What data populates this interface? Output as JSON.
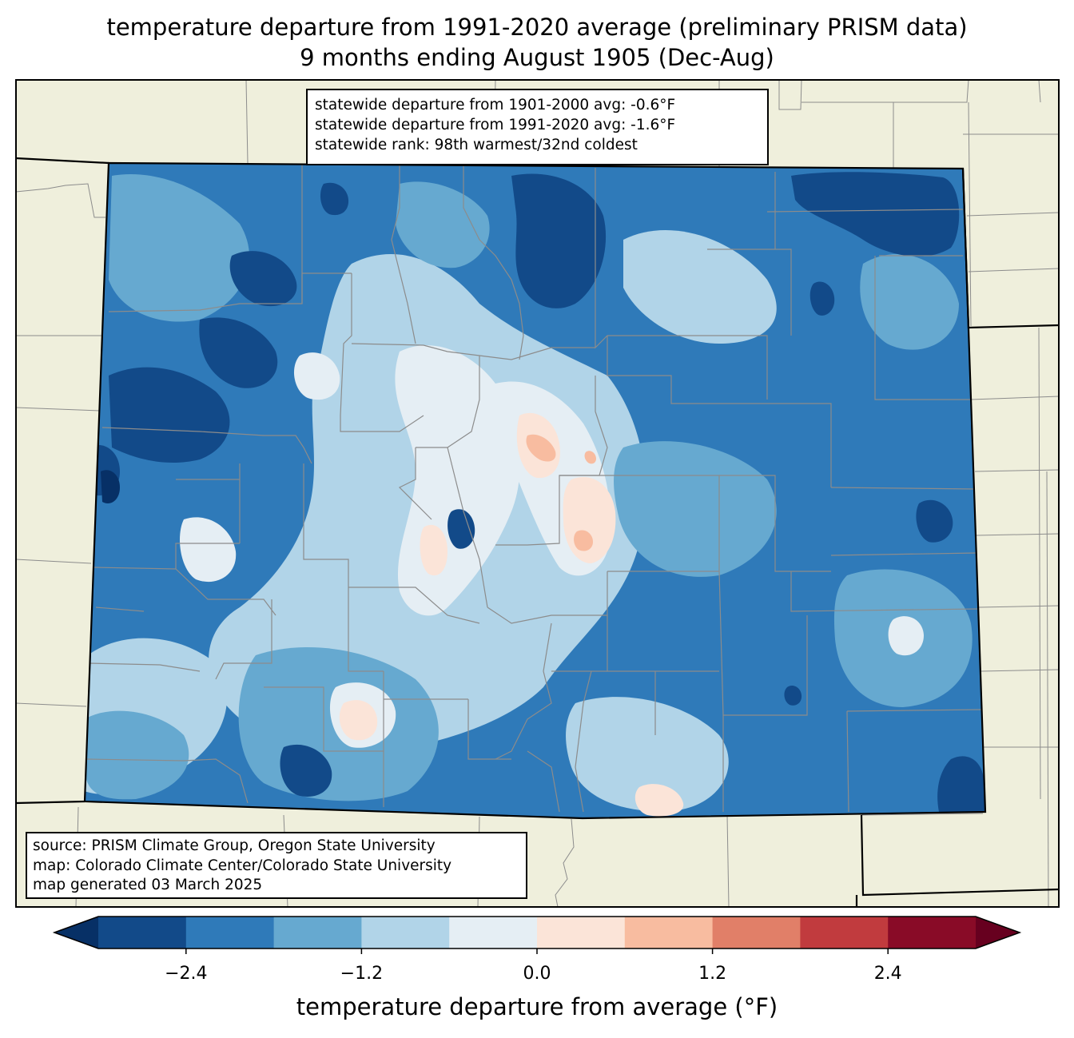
{
  "title": {
    "line1": "temperature departure from 1991-2020 average (preliminary PRISM data)",
    "line2": "9 months ending August 1905 (Dec-Aug)"
  },
  "stats": {
    "line1": "statewide departure from 1901-2000 avg: -0.6°F",
    "line2": "statewide departure from 1991-2020 avg: -1.6°F",
    "line3": "statewide rank: 98th warmest/32nd coldest"
  },
  "source": {
    "line1": "source: PRISM Climate Group, Oregon State University",
    "line2": "map: Colorado Climate Center/Colorado State University",
    "line3": "map generated 03 March 2025"
  },
  "colorbar": {
    "label": "temperature departure from average (°F)",
    "min": -3.0,
    "max": 3.0,
    "step": 0.6,
    "ticks": [
      {
        "value": -2.4,
        "label": "−2.4"
      },
      {
        "value": -1.2,
        "label": "−1.2"
      },
      {
        "value": 0.0,
        "label": "0.0"
      },
      {
        "value": 1.2,
        "label": "1.2"
      },
      {
        "value": 2.4,
        "label": "2.4"
      }
    ],
    "under_color": "#073066",
    "over_color": "#67001f",
    "colors": [
      "#124a89",
      "#2f7ab9",
      "#66a9d0",
      "#b1d4e8",
      "#e5eef4",
      "#fbe4d8",
      "#f8bca0",
      "#e17f68",
      "#c13b3e",
      "#890b27"
    ]
  },
  "map_colors": {
    "background": "#efefdc",
    "state_border": "#000000",
    "county_line": "#8c8c8c"
  }
}
